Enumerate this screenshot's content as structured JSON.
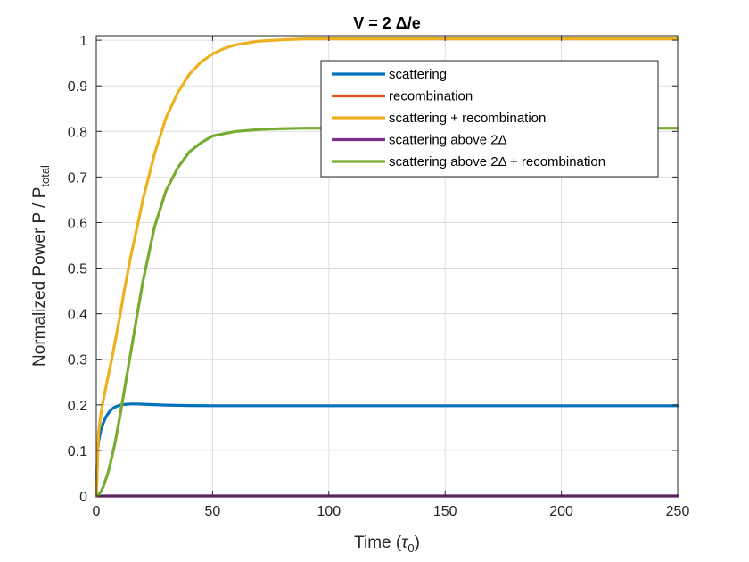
{
  "chart_data": {
    "type": "line",
    "title": "V = 2 Δ/e",
    "xlabel": {
      "main": "Time (",
      "symbol": "τ",
      "sub": "0",
      "end": ")"
    },
    "ylabel": {
      "main": "Normalized Power P / P",
      "sub": "total"
    },
    "xlim": [
      0,
      250
    ],
    "ylim": [
      0,
      1.01
    ],
    "xticks": [
      0,
      50,
      100,
      150,
      200,
      250
    ],
    "xtick_labels": [
      "0",
      "50",
      "100",
      "150",
      "200",
      "250"
    ],
    "yticks": [
      0,
      0.1,
      0.2,
      0.3,
      0.4,
      0.5,
      0.6,
      0.7,
      0.8,
      0.9,
      1
    ],
    "ytick_labels": [
      "0",
      "0.1",
      "0.2",
      "0.3",
      "0.4",
      "0.5",
      "0.6",
      "0.7",
      "0.8",
      "0.9",
      "1"
    ],
    "grid": true,
    "legend_position": "top-right",
    "series": [
      {
        "name": "scattering",
        "color": "#0072BD",
        "x": [
          0,
          0.5,
          1,
          2,
          3,
          4,
          5,
          6,
          7,
          8,
          10,
          12,
          15,
          18,
          20,
          25,
          30,
          40,
          50,
          60,
          80,
          100,
          150,
          200,
          250
        ],
        "y": [
          0.0,
          0.09,
          0.12,
          0.145,
          0.16,
          0.172,
          0.18,
          0.187,
          0.192,
          0.195,
          0.199,
          0.201,
          0.202,
          0.202,
          0.2015,
          0.2005,
          0.1995,
          0.1985,
          0.198,
          0.198,
          0.198,
          0.198,
          0.198,
          0.198,
          0.198
        ]
      },
      {
        "name": "recombination",
        "color": "#D95319",
        "x": [
          0,
          250
        ],
        "y": [
          0,
          0
        ]
      },
      {
        "name": "scattering + recombination",
        "color": "#EDB120",
        "x": [
          0,
          1,
          2,
          3,
          5,
          7,
          10,
          12,
          15,
          18,
          20,
          25,
          30,
          35,
          40,
          45,
          50,
          55,
          60,
          70,
          80,
          90,
          100,
          120,
          150,
          200,
          250
        ],
        "y": [
          0.0,
          0.14,
          0.18,
          0.21,
          0.26,
          0.31,
          0.39,
          0.45,
          0.53,
          0.6,
          0.65,
          0.75,
          0.83,
          0.885,
          0.925,
          0.952,
          0.97,
          0.982,
          0.99,
          0.998,
          1.001,
          1.003,
          1.003,
          1.003,
          1.003,
          1.003,
          1.003
        ]
      },
      {
        "name": "scattering above 2Δ",
        "color": "#7E2F8E",
        "x": [
          0,
          250
        ],
        "y": [
          0,
          0
        ]
      },
      {
        "name": "scattering above 2Δ + recombination",
        "color": "#77AC30",
        "x": [
          0,
          1,
          2,
          3,
          4,
          5,
          6,
          8,
          10,
          12,
          15,
          18,
          20,
          25,
          30,
          35,
          40,
          45,
          50,
          60,
          70,
          80,
          90,
          100,
          120,
          150,
          200,
          250
        ],
        "y": [
          0.0,
          0.003,
          0.01,
          0.02,
          0.035,
          0.05,
          0.07,
          0.115,
          0.17,
          0.23,
          0.32,
          0.41,
          0.47,
          0.59,
          0.67,
          0.72,
          0.755,
          0.775,
          0.79,
          0.8,
          0.804,
          0.806,
          0.807,
          0.807,
          0.807,
          0.807,
          0.807,
          0.807
        ]
      }
    ]
  }
}
